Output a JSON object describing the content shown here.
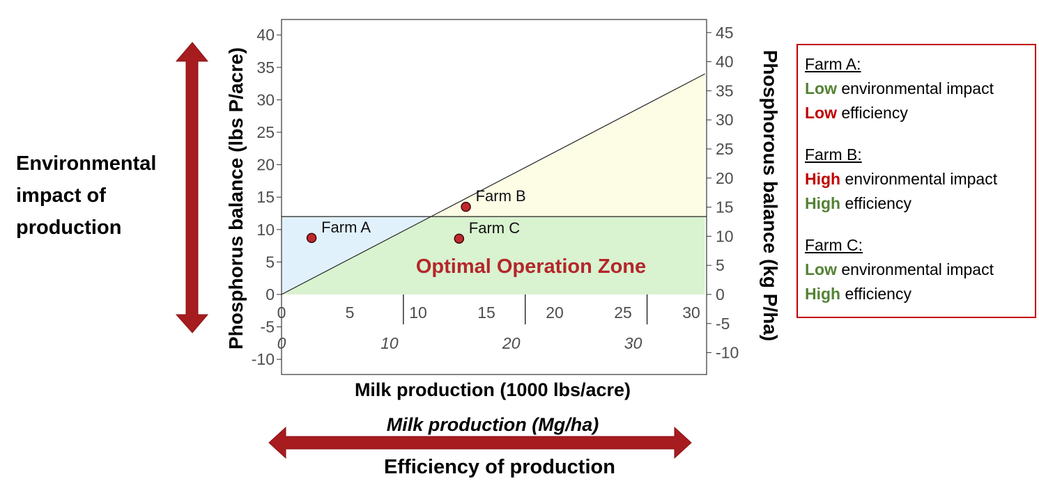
{
  "chart_data": {
    "type": "scatter",
    "x_primary": {
      "label": "Milk production (1000 lbs/acre)",
      "range": [
        0,
        31
      ],
      "ticks": [
        0,
        5,
        10,
        15,
        20,
        25,
        30
      ]
    },
    "x_secondary": {
      "label": "Milk production (Mg/ha)",
      "ticks": [
        0,
        10,
        20,
        30
      ]
    },
    "y_primary": {
      "label": "Phosphorus balance (lbs P/acre)",
      "range": [
        -12.5,
        42
      ],
      "ticks": [
        -10,
        -5,
        0,
        5,
        10,
        15,
        20,
        25,
        30,
        35,
        40
      ]
    },
    "y_secondary": {
      "label": "Phosphorous balance (kg P/ha)",
      "ticks": [
        -10,
        -5,
        0,
        5,
        10,
        15,
        20,
        25,
        30,
        35,
        40,
        45
      ]
    },
    "threshold_y": 12,
    "diagonal_line": {
      "from": [
        0,
        0
      ],
      "to": [
        31,
        34
      ]
    },
    "zone_label": "Optimal Operation Zone",
    "points": [
      {
        "label": "Farm A",
        "x": 2.2,
        "y": 8.7
      },
      {
        "label": "Farm B",
        "x": 13.5,
        "y": 13.5
      },
      {
        "label": "Farm C",
        "x": 13.0,
        "y": 8.6
      }
    ],
    "colors": {
      "green_zone": "#d9f2d0",
      "blue_zone": "#e1f1fb",
      "yellow_zone": "#fdfde6",
      "point": "#c0282d",
      "zone_text": "#b3262a",
      "arrow": "#a61c1f"
    },
    "grid": false
  },
  "annotations": {
    "left_label": [
      "Environmental",
      "impact of",
      "production"
    ],
    "bottom_label": "Efficiency of production"
  },
  "legend": [
    {
      "title": "Farm A:",
      "lines": [
        {
          "kw": "Low",
          "kw_color": "#548235",
          "rest": " environmental impact"
        },
        {
          "kw": "Low",
          "kw_color": "#c00000",
          "rest": " efficiency"
        }
      ]
    },
    {
      "title": "Farm B:",
      "lines": [
        {
          "kw": "High",
          "kw_color": "#c00000",
          "rest": " environmental impact"
        },
        {
          "kw": "High",
          "kw_color": "#548235",
          "rest": " efficiency"
        }
      ]
    },
    {
      "title": "Farm C:",
      "lines": [
        {
          "kw": "Low",
          "kw_color": "#548235",
          "rest": " environmental impact"
        },
        {
          "kw": "High",
          "kw_color": "#548235",
          "rest": " efficiency"
        }
      ]
    }
  ]
}
